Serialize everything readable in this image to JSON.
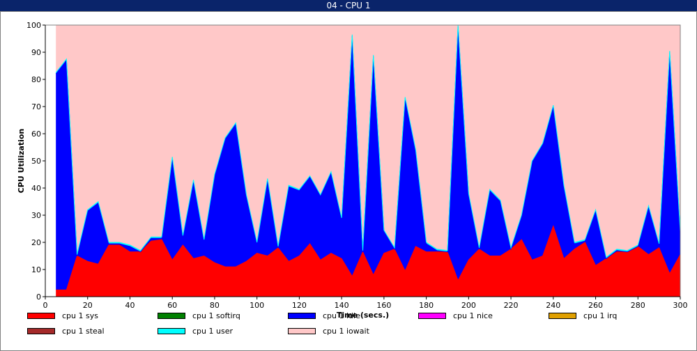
{
  "window": {
    "title": "04 - CPU 1"
  },
  "chart_data": {
    "type": "area",
    "stacked": true,
    "xlabel": "Time (secs.)",
    "ylabel": "CPU Utilization",
    "xlim": [
      0,
      300
    ],
    "ylim": [
      0,
      100
    ],
    "xticks": [
      0,
      20,
      40,
      60,
      80,
      100,
      120,
      140,
      160,
      180,
      200,
      220,
      240,
      260,
      280,
      300
    ],
    "yticks": [
      0,
      10,
      20,
      30,
      40,
      50,
      60,
      70,
      80,
      90,
      100
    ],
    "grid": false,
    "legend_position": "bottom",
    "x": [
      5,
      10,
      15,
      20,
      25,
      30,
      35,
      40,
      45,
      50,
      55,
      60,
      65,
      70,
      75,
      80,
      85,
      90,
      95,
      100,
      105,
      110,
      115,
      120,
      125,
      130,
      135,
      140,
      145,
      150,
      155,
      160,
      165,
      170,
      175,
      180,
      185,
      190,
      195,
      200,
      205,
      210,
      215,
      220,
      225,
      230,
      235,
      240,
      245,
      250,
      255,
      260,
      265,
      270,
      275,
      280,
      285,
      290,
      295,
      300
    ],
    "series": [
      {
        "name": "cpu 1 sys",
        "color": "#ff0000",
        "values": [
          2.5,
          2.5,
          15,
          13,
          12,
          19,
          19,
          16.5,
          16.5,
          20.5,
          21,
          13.5,
          19,
          14,
          15,
          12.5,
          11,
          11,
          13,
          16,
          15,
          18,
          13,
          15,
          19.5,
          13.5,
          16,
          14,
          7.5,
          16.5,
          8,
          16,
          17.5,
          9.5,
          18.5,
          16.5,
          16.5,
          16.5,
          6,
          13.5,
          17.5,
          15,
          15,
          17.5,
          21,
          13.5,
          15,
          26,
          14,
          17.5,
          20,
          11.5,
          14,
          16.5,
          16.5,
          18.5,
          15.5,
          18,
          8.5,
          15.5
        ]
      },
      {
        "name": "cpu 1 softirq",
        "color": "#008000",
        "values": [
          0,
          0,
          0,
          0,
          0,
          0,
          0,
          0,
          0,
          0,
          0,
          0,
          0,
          0,
          0,
          0,
          0,
          0,
          0,
          0,
          0,
          0,
          0,
          0,
          0,
          0,
          0,
          0,
          0,
          0,
          0,
          0,
          0,
          0,
          0,
          0,
          0,
          0,
          0,
          0,
          0,
          0,
          0,
          0,
          0,
          0,
          0,
          0,
          0,
          0,
          0,
          0,
          0,
          0,
          0,
          0,
          0,
          0,
          0,
          0
        ]
      },
      {
        "name": "cpu 1 idle",
        "color": "#0000ff",
        "values": [
          79.5,
          84.5,
          0,
          18.5,
          22.5,
          0.5,
          0.5,
          2,
          0,
          1,
          0.5,
          37.5,
          3,
          28.5,
          5.5,
          32,
          47,
          52.5,
          24,
          3.5,
          28,
          0,
          27.5,
          24,
          24.5,
          23.5,
          29.5,
          14.5,
          88.5,
          0,
          80.5,
          8,
          0,
          63.5,
          35,
          3,
          0.5,
          0,
          93.5,
          24,
          0,
          24,
          20,
          0,
          8.5,
          36,
          41,
          44,
          26.5,
          2,
          0.5,
          20,
          0,
          0.5,
          0,
          0,
          17.5,
          1,
          81.5,
          8
        ]
      },
      {
        "name": "cpu 1 nice",
        "color": "#ff00ff",
        "values": [
          0,
          0,
          0,
          0,
          0,
          0,
          0,
          0,
          0,
          0,
          0,
          0,
          0,
          0,
          0,
          0,
          0,
          0,
          0,
          0,
          0,
          0,
          0,
          0,
          0,
          0,
          0,
          0,
          0,
          0,
          0,
          0,
          0,
          0,
          0,
          0,
          0,
          0,
          0,
          0,
          0,
          0,
          0,
          0,
          0,
          0,
          0,
          0,
          0,
          0,
          0,
          0,
          0,
          0,
          0,
          0,
          0,
          0,
          0,
          0
        ]
      },
      {
        "name": "cpu 1 irq",
        "color": "#e0a000",
        "values": [
          0,
          0,
          0,
          0,
          0,
          0,
          0,
          0,
          0,
          0,
          0,
          0,
          0,
          0,
          0,
          0,
          0,
          0,
          0,
          0,
          0,
          0,
          0,
          0,
          0,
          0,
          0,
          0,
          0,
          0,
          0,
          0,
          0,
          0,
          0,
          0,
          0,
          0,
          0,
          0,
          0,
          0,
          0,
          0,
          0,
          0,
          0,
          0,
          0,
          0,
          0,
          0,
          0,
          0,
          0,
          0,
          0,
          0,
          0,
          0
        ]
      },
      {
        "name": "cpu 1 steal",
        "color": "#a52a2a",
        "values": [
          0,
          0,
          0,
          0,
          0,
          0,
          0,
          0,
          0,
          0,
          0,
          0,
          0,
          0,
          0,
          0,
          0,
          0,
          0,
          0,
          0,
          0,
          0,
          0,
          0,
          0,
          0,
          0,
          0,
          0,
          0,
          0,
          0,
          0,
          0,
          0,
          0,
          0,
          0,
          0,
          0,
          0,
          0,
          0,
          0,
          0,
          0,
          0,
          0,
          0,
          0,
          0,
          0,
          0,
          0,
          0,
          0,
          0,
          0,
          0
        ]
      },
      {
        "name": "cpu 1 user",
        "color": "#00ffff",
        "values": [
          0.5,
          0.5,
          0.5,
          0.5,
          0.5,
          0.5,
          0.5,
          0.5,
          0.5,
          0.5,
          0.5,
          0.5,
          0.5,
          0.5,
          0.5,
          0.5,
          0.5,
          0.5,
          0.5,
          0.5,
          0.5,
          0.5,
          0.5,
          0.5,
          0.5,
          0.5,
          0.5,
          0.5,
          0.5,
          0.5,
          0.5,
          0.5,
          0.5,
          0.5,
          0.5,
          0.5,
          0.5,
          0.5,
          0.5,
          0.5,
          0.5,
          0.5,
          0.5,
          0.5,
          0.5,
          0.5,
          0.5,
          0.5,
          0.5,
          0.5,
          0.5,
          0.5,
          0.5,
          0.5,
          0.5,
          0.5,
          0.5,
          0.5,
          0.5,
          0.5
        ]
      },
      {
        "name": "cpu 1 iowait",
        "color": "#ffc8c8",
        "fills_remainder_to": 100
      }
    ]
  }
}
